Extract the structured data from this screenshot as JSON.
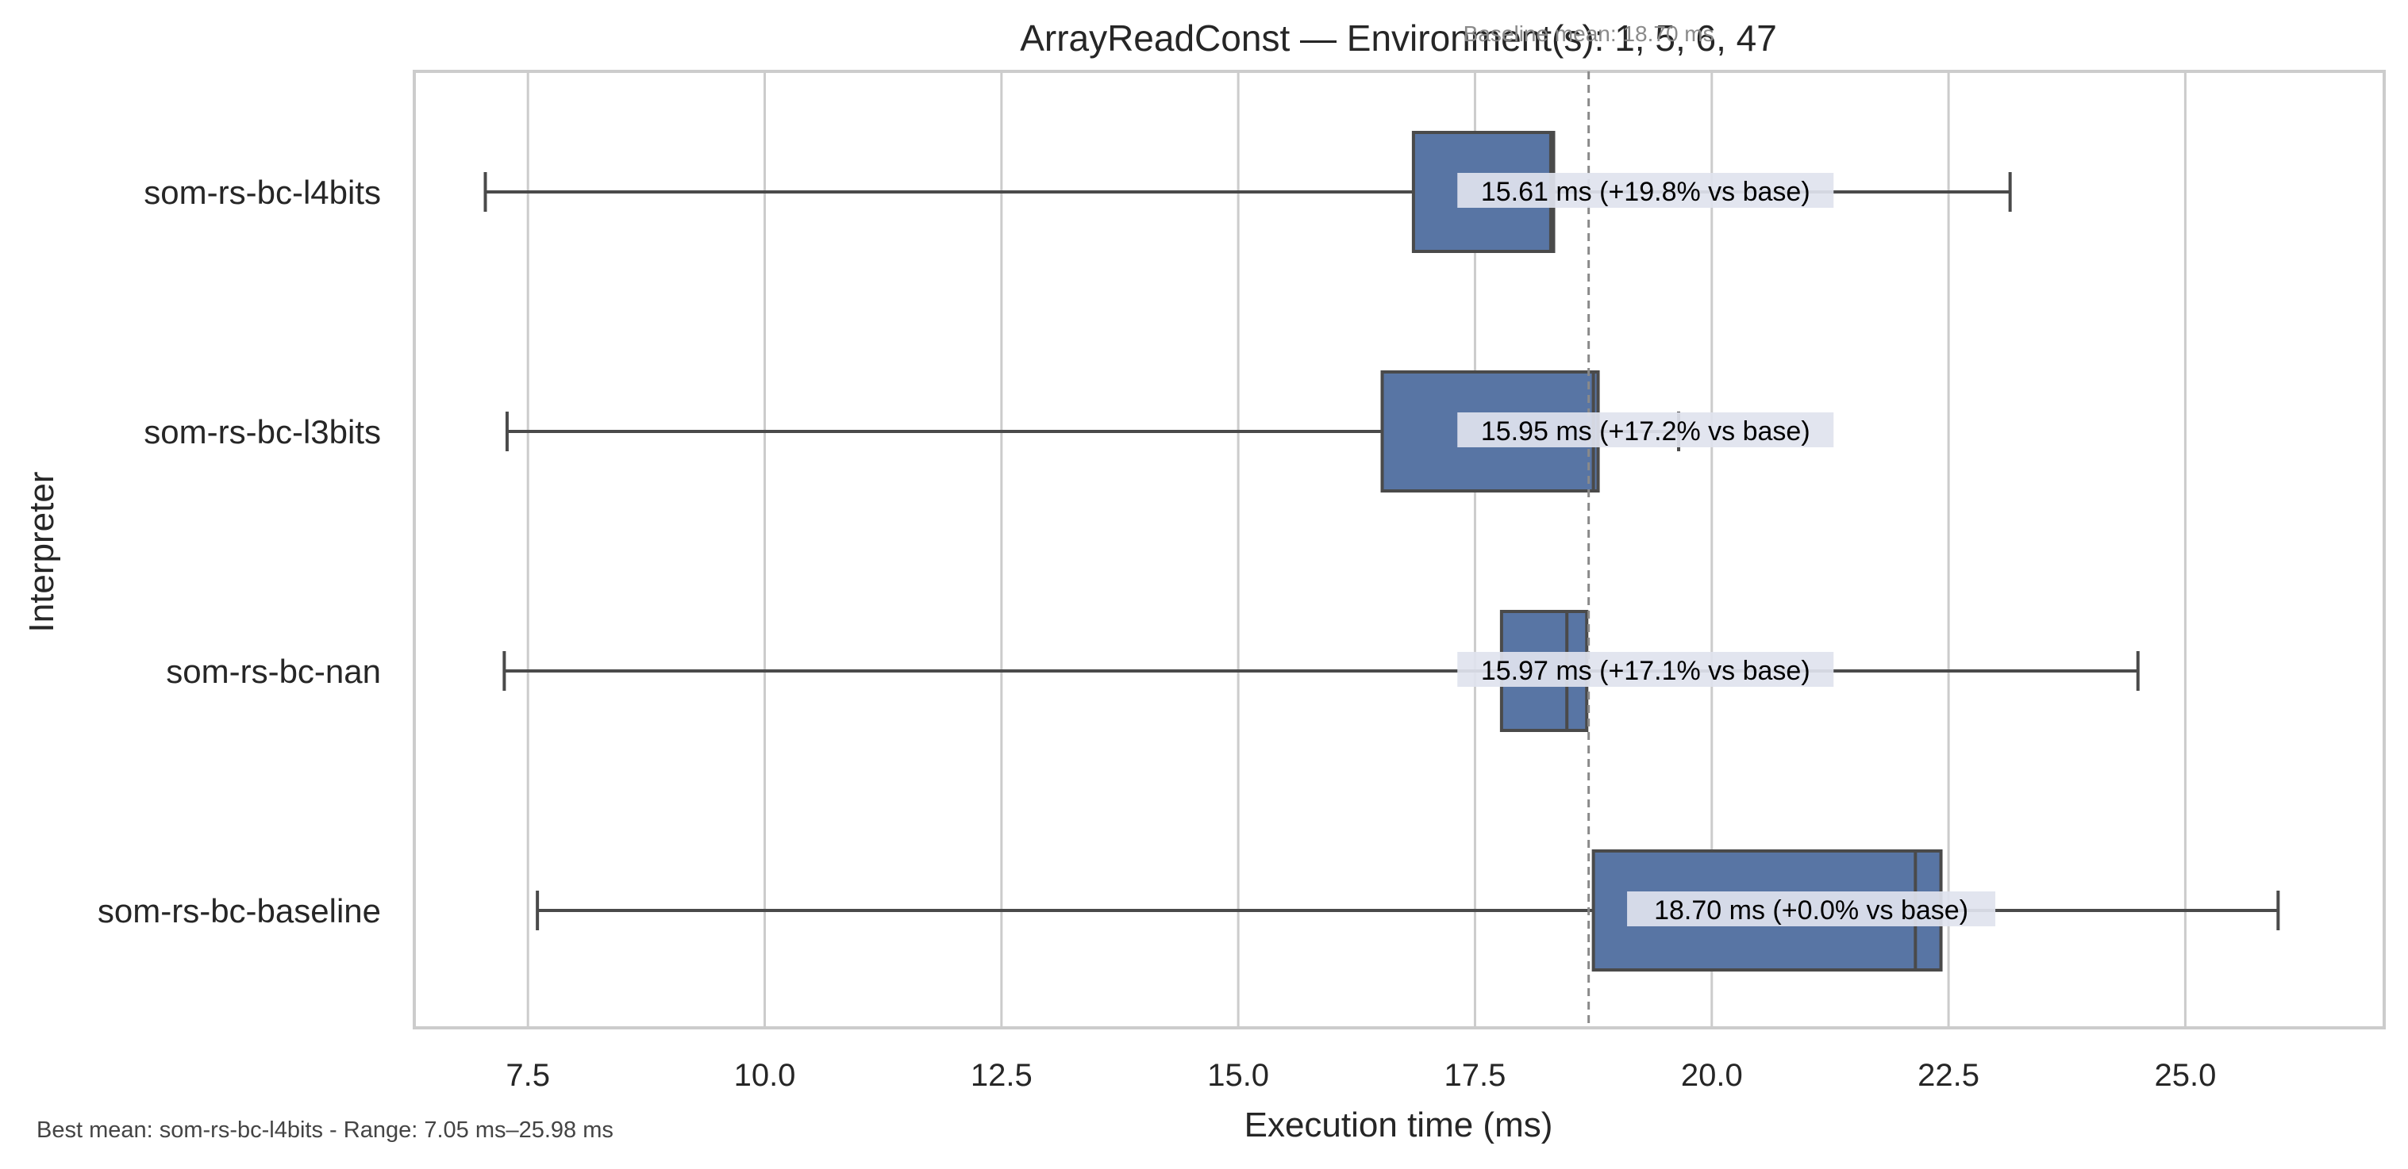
{
  "chart_data": {
    "type": "boxplot",
    "title": "ArrayReadConst — Environment(s): 1, 5, 6, 47",
    "baseline_note": "Baseline mean: 18.70 ms",
    "xlabel": "Execution time (ms)",
    "ylabel": "Interpreter",
    "xlim": [
      6.3,
      27.1
    ],
    "xticks": [
      7.5,
      10.0,
      12.5,
      15.0,
      17.5,
      20.0,
      22.5,
      25.0
    ],
    "xtick_labels": [
      "7.5",
      "10.0",
      "12.5",
      "15.0",
      "17.5",
      "20.0",
      "22.5",
      "25.0"
    ],
    "grid": true,
    "baseline_value": 18.7,
    "categories": [
      "som-rs-bc-l4bits",
      "som-rs-bc-l3bits",
      "som-rs-bc-nan",
      "som-rs-bc-baseline"
    ],
    "boxes": [
      {
        "name": "som-rs-bc-l4bits",
        "whisker_low": 7.05,
        "q1": 16.85,
        "median": 18.3,
        "q3": 18.33,
        "whisker_high": 23.15,
        "annotation": "15.61 ms  (+19.8% vs base)"
      },
      {
        "name": "som-rs-bc-l3bits",
        "whisker_low": 7.28,
        "q1": 16.52,
        "median": 18.75,
        "q3": 18.8,
        "whisker_high": 19.65,
        "annotation": "15.95 ms  (+17.2% vs base)"
      },
      {
        "name": "som-rs-bc-nan",
        "whisker_low": 7.25,
        "q1": 17.78,
        "median": 18.47,
        "q3": 18.68,
        "whisker_high": 24.5,
        "annotation": "15.97 ms  (+17.1% vs base)"
      },
      {
        "name": "som-rs-bc-baseline",
        "whisker_low": 7.6,
        "q1": 18.75,
        "median": 22.15,
        "q3": 22.42,
        "whisker_high": 25.98,
        "annotation": "18.70 ms  (+0.0% vs base)"
      }
    ],
    "colors": {
      "box_fill": "#5875a4",
      "box_edge": "#4a4a4a",
      "whisker": "#4a4a4a",
      "grid": "#cccccc",
      "frame": "#cccccc",
      "baseline_line": "#8a8a8a",
      "annotation_bg": "#dfe3ee"
    }
  },
  "footer": "Best mean: som-rs-bc-l4bits - Range: 7.05 ms–25.98 ms"
}
